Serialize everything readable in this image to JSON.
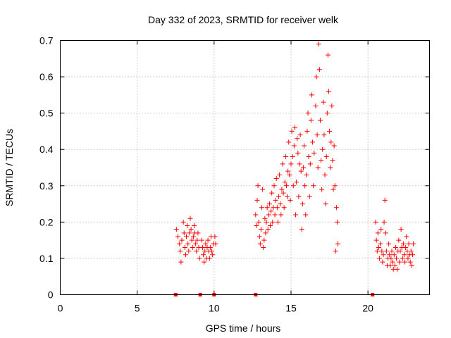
{
  "chart_data": {
    "type": "scatter",
    "title": "Day 332 of 2023, SRMTID for receiver welk",
    "xlabel": "GPS time / hours",
    "ylabel": "SRMTID / TECUs",
    "xlim": [
      0,
      24
    ],
    "ylim": [
      0,
      0.7
    ],
    "x_ticks": [
      "0",
      "5",
      "10",
      "15",
      "20"
    ],
    "y_ticks": [
      "0",
      "0.1",
      "0.2",
      "0.3",
      "0.4",
      "0.5",
      "0.6",
      "0.7"
    ],
    "grid": true,
    "marker": "+",
    "color": "#ff0000",
    "series": [
      {
        "name": "SRMTID",
        "points": [
          [
            7.55,
            0.18
          ],
          [
            7.65,
            0.16
          ],
          [
            7.75,
            0.14
          ],
          [
            7.8,
            0.12
          ],
          [
            7.85,
            0.09
          ],
          [
            7.9,
            0.15
          ],
          [
            8.0,
            0.2
          ],
          [
            8.05,
            0.17
          ],
          [
            8.1,
            0.13
          ],
          [
            8.15,
            0.11
          ],
          [
            8.2,
            0.16
          ],
          [
            8.25,
            0.19
          ],
          [
            8.3,
            0.14
          ],
          [
            8.35,
            0.12
          ],
          [
            8.4,
            0.17
          ],
          [
            8.45,
            0.21
          ],
          [
            8.5,
            0.18
          ],
          [
            8.55,
            0.15
          ],
          [
            8.6,
            0.13
          ],
          [
            8.65,
            0.16
          ],
          [
            8.7,
            0.19
          ],
          [
            8.75,
            0.17
          ],
          [
            8.8,
            0.14
          ],
          [
            8.85,
            0.12
          ],
          [
            8.9,
            0.15
          ],
          [
            8.95,
            0.17
          ],
          [
            9.0,
            0.13
          ],
          [
            9.05,
            0.1
          ],
          [
            9.2,
            0.15
          ],
          [
            9.25,
            0.13
          ],
          [
            9.3,
            0.11
          ],
          [
            9.35,
            0.09
          ],
          [
            9.4,
            0.12
          ],
          [
            9.45,
            0.14
          ],
          [
            9.5,
            0.1
          ],
          [
            9.55,
            0.13
          ],
          [
            9.6,
            0.15
          ],
          [
            9.65,
            0.12
          ],
          [
            9.7,
            0.1
          ],
          [
            9.75,
            0.13
          ],
          [
            9.8,
            0.16
          ],
          [
            9.85,
            0.12
          ],
          [
            9.9,
            0.11
          ],
          [
            9.95,
            0.14
          ],
          [
            10.05,
            0.16
          ],
          [
            10.1,
            0.14
          ],
          [
            12.7,
            0.22
          ],
          [
            12.75,
            0.19
          ],
          [
            12.8,
            0.26
          ],
          [
            12.85,
            0.3
          ],
          [
            12.9,
            0.2
          ],
          [
            12.95,
            0.16
          ],
          [
            13.0,
            0.14
          ],
          [
            13.05,
            0.18
          ],
          [
            13.1,
            0.24
          ],
          [
            13.15,
            0.29
          ],
          [
            13.2,
            0.13
          ],
          [
            13.25,
            0.15
          ],
          [
            13.3,
            0.21
          ],
          [
            13.35,
            0.17
          ],
          [
            13.4,
            0.2
          ],
          [
            13.45,
            0.24
          ],
          [
            13.5,
            0.18
          ],
          [
            13.55,
            0.22
          ],
          [
            13.6,
            0.25
          ],
          [
            13.65,
            0.19
          ],
          [
            13.7,
            0.23
          ],
          [
            13.75,
            0.28
          ],
          [
            13.8,
            0.2
          ],
          [
            13.85,
            0.24
          ],
          [
            13.9,
            0.3
          ],
          [
            13.95,
            0.22
          ],
          [
            14.0,
            0.26
          ],
          [
            14.05,
            0.32
          ],
          [
            14.1,
            0.24
          ],
          [
            14.15,
            0.2
          ],
          [
            14.2,
            0.27
          ],
          [
            14.25,
            0.33
          ],
          [
            14.3,
            0.25
          ],
          [
            14.35,
            0.22
          ],
          [
            14.4,
            0.29
          ],
          [
            14.45,
            0.36
          ],
          [
            14.5,
            0.28
          ],
          [
            14.55,
            0.24
          ],
          [
            14.6,
            0.31
          ],
          [
            14.65,
            0.38
          ],
          [
            14.7,
            0.3
          ],
          [
            14.75,
            0.27
          ],
          [
            14.8,
            0.34
          ],
          [
            14.85,
            0.42
          ],
          [
            14.9,
            0.33
          ],
          [
            14.95,
            0.26
          ],
          [
            15.0,
            0.36
          ],
          [
            15.05,
            0.45
          ],
          [
            15.1,
            0.38
          ],
          [
            15.15,
            0.3
          ],
          [
            15.2,
            0.41
          ],
          [
            15.25,
            0.46
          ],
          [
            15.3,
            0.22
          ],
          [
            15.35,
            0.31
          ],
          [
            15.4,
            0.43
          ],
          [
            15.45,
            0.39
          ],
          [
            15.5,
            0.27
          ],
          [
            15.55,
            0.36
          ],
          [
            15.6,
            0.44
          ],
          [
            15.65,
            0.34
          ],
          [
            15.7,
            0.18
          ],
          [
            15.75,
            0.25
          ],
          [
            15.8,
            0.35
          ],
          [
            15.85,
            0.41
          ],
          [
            15.9,
            0.3
          ],
          [
            15.95,
            0.22
          ],
          [
            16.0,
            0.33
          ],
          [
            16.05,
            0.45
          ],
          [
            16.1,
            0.5
          ],
          [
            16.15,
            0.38
          ],
          [
            16.2,
            0.27
          ],
          [
            16.25,
            0.36
          ],
          [
            16.3,
            0.48
          ],
          [
            16.35,
            0.55
          ],
          [
            16.4,
            0.42
          ],
          [
            16.45,
            0.3
          ],
          [
            16.5,
            0.39
          ],
          [
            16.6,
            0.52
          ],
          [
            16.65,
            0.6
          ],
          [
            16.7,
            0.44
          ],
          [
            16.75,
            0.35
          ],
          [
            16.8,
            0.69
          ],
          [
            16.85,
            0.62
          ],
          [
            16.9,
            0.48
          ],
          [
            16.95,
            0.37
          ],
          [
            17.0,
            0.29
          ],
          [
            17.05,
            0.4
          ],
          [
            17.1,
            0.53
          ],
          [
            17.15,
            0.44
          ],
          [
            17.2,
            0.33
          ],
          [
            17.25,
            0.25
          ],
          [
            17.3,
            0.38
          ],
          [
            17.35,
            0.5
          ],
          [
            17.4,
            0.66
          ],
          [
            17.45,
            0.56
          ],
          [
            17.5,
            0.45
          ],
          [
            17.55,
            0.35
          ],
          [
            17.6,
            0.42
          ],
          [
            17.65,
            0.52
          ],
          [
            17.7,
            0.37
          ],
          [
            17.75,
            0.29
          ],
          [
            17.8,
            0.41
          ],
          [
            17.85,
            0.3
          ],
          [
            17.9,
            0.12
          ],
          [
            17.95,
            0.24
          ],
          [
            18.0,
            0.2
          ],
          [
            18.05,
            0.14
          ],
          [
            20.5,
            0.2
          ],
          [
            20.55,
            0.15
          ],
          [
            20.6,
            0.12
          ],
          [
            20.65,
            0.17
          ],
          [
            20.7,
            0.13
          ],
          [
            20.75,
            0.1
          ],
          [
            20.8,
            0.14
          ],
          [
            20.85,
            0.18
          ],
          [
            20.9,
            0.12
          ],
          [
            20.95,
            0.09
          ],
          [
            21.0,
            0.11
          ],
          [
            21.05,
            0.2
          ],
          [
            21.1,
            0.26
          ],
          [
            21.15,
            0.17
          ],
          [
            21.2,
            0.12
          ],
          [
            21.25,
            0.08
          ],
          [
            21.3,
            0.1
          ],
          [
            21.35,
            0.14
          ],
          [
            21.4,
            0.11
          ],
          [
            21.45,
            0.08
          ],
          [
            21.5,
            0.1
          ],
          [
            21.55,
            0.12
          ],
          [
            21.6,
            0.09
          ],
          [
            21.65,
            0.07
          ],
          [
            21.7,
            0.11
          ],
          [
            21.75,
            0.08
          ],
          [
            21.8,
            0.13
          ],
          [
            21.85,
            0.1
          ],
          [
            21.9,
            0.07
          ],
          [
            21.95,
            0.12
          ],
          [
            22.0,
            0.15
          ],
          [
            22.05,
            0.09
          ],
          [
            22.1,
            0.12
          ],
          [
            22.15,
            0.18
          ],
          [
            22.2,
            0.13
          ],
          [
            22.25,
            0.1
          ],
          [
            22.3,
            0.14
          ],
          [
            22.35,
            0.11
          ],
          [
            22.4,
            0.09
          ],
          [
            22.45,
            0.13
          ],
          [
            22.5,
            0.16
          ],
          [
            22.55,
            0.12
          ],
          [
            22.6,
            0.1
          ],
          [
            22.65,
            0.14
          ],
          [
            22.7,
            0.11
          ],
          [
            22.75,
            0.09
          ],
          [
            22.8,
            0.12
          ],
          [
            22.85,
            0.08
          ],
          [
            22.9,
            0.11
          ],
          [
            22.95,
            0.14
          ]
        ]
      }
    ],
    "zero_points": [
      7.5,
      9.1,
      10.0,
      12.7,
      20.3
    ]
  }
}
